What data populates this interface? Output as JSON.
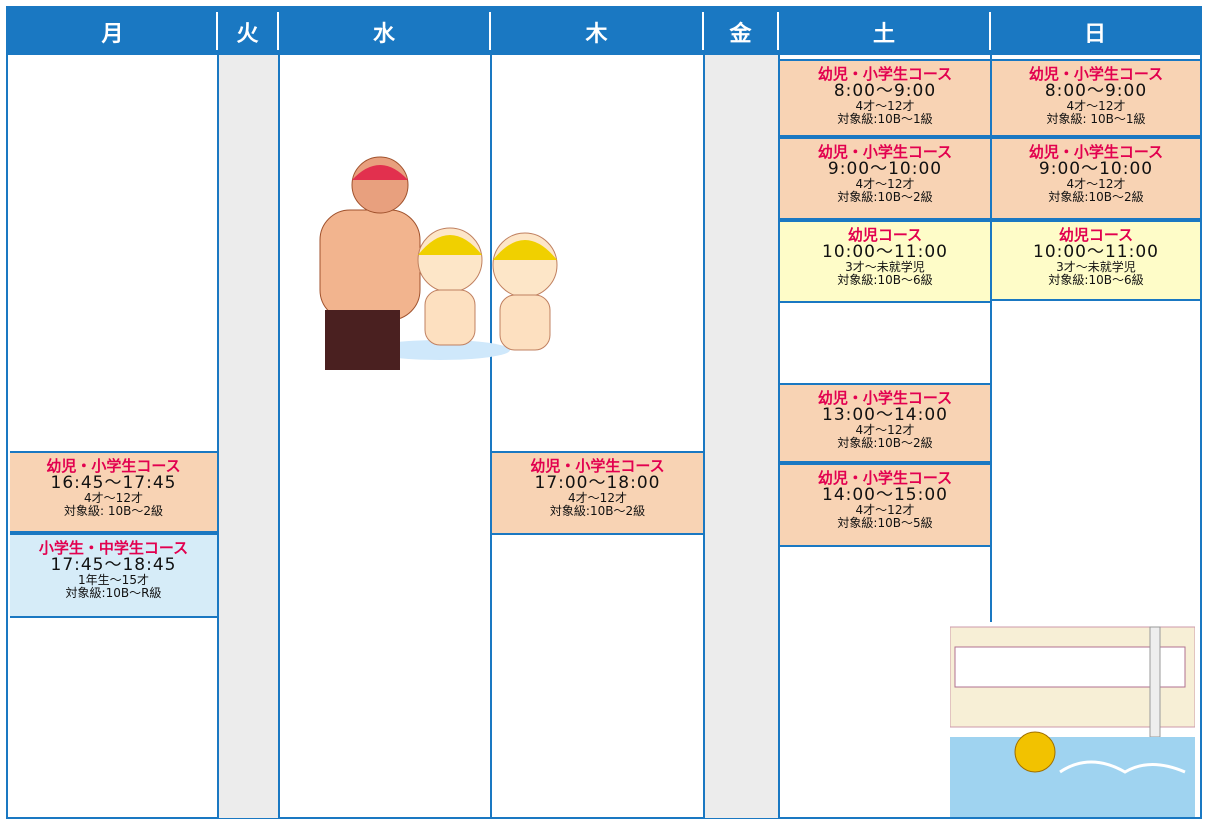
{
  "header": {
    "days": [
      "月",
      "火",
      "水",
      "木",
      "金",
      "土",
      "日"
    ]
  },
  "columns": [
    {
      "sessions": [
        {
          "title": "幼児・小学生コース",
          "time": "16:45～17:45",
          "age": "4才～12才",
          "level": "対象級: 10B～2級"
        },
        {
          "title": "小学生・中学生コース",
          "time": "17:45～18:45",
          "age": "1年生～15才",
          "level": "対象級:10B～R級"
        }
      ]
    },
    {
      "sessions": []
    },
    {
      "sessions": []
    },
    {
      "sessions": [
        {
          "title": "幼児・小学生コース",
          "time": "17:00～18:00",
          "age": "4才～12才",
          "level": "対象級:10B～2級"
        }
      ]
    },
    {
      "sessions": []
    },
    {
      "sessions": [
        {
          "title": "幼児・小学生コース",
          "time": "8:00～9:00",
          "age": "4才～12才",
          "level": "対象級:10B～1級"
        },
        {
          "title": "幼児・小学生コース",
          "time": "9:00～10:00",
          "age": "4才～12才",
          "level": "対象級:10B～2級"
        },
        {
          "title": "幼児コース",
          "time": "10:00～11:00",
          "age": "3才～未就学児",
          "level": "対象級:10B～6級"
        },
        {
          "title": "幼児・小学生コース",
          "time": "13:00～14:00",
          "age": "4才～12才",
          "level": "対象級:10B～2級"
        },
        {
          "title": "幼児・小学生コース",
          "time": "14:00～15:00",
          "age": "4才～12才",
          "level": "対象級:10B～5級"
        }
      ]
    },
    {
      "sessions": [
        {
          "title": "幼児・小学生コース",
          "time": "8:00～9:00",
          "age": "4才～12才",
          "level": "対象級: 10B～1級"
        },
        {
          "title": "幼児・小学生コース",
          "time": "9:00～10:00",
          "age": "4才～12才",
          "level": "対象級:10B～2級"
        },
        {
          "title": "幼児コース",
          "time": "10:00～11:00",
          "age": "3才～未就学児",
          "level": "対象級:10B～6級"
        }
      ]
    }
  ]
}
